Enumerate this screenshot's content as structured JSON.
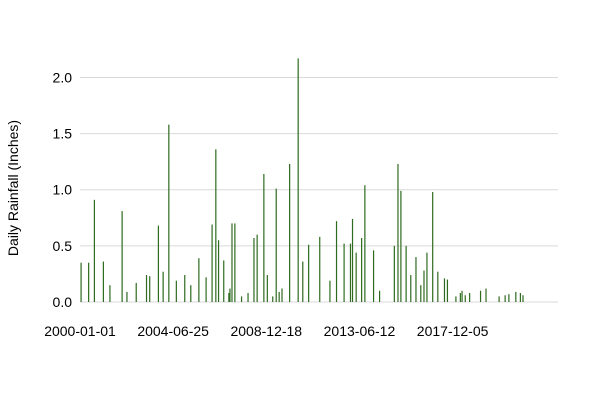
{
  "chart_data": {
    "type": "bar",
    "title": "",
    "xlabel": "",
    "ylabel": "Daily Rainfall (Inches)",
    "ylim": [
      0,
      2.2
    ],
    "xlim": [
      "2000-01-01",
      "2022-12-31"
    ],
    "y_ticks": [
      0.0,
      0.5,
      1.0,
      1.5,
      2.0
    ],
    "y_tick_labels": [
      "0.0",
      "0.5",
      "1.0",
      "1.5",
      "2.0"
    ],
    "x_tick_labels": [
      "2000-01-01",
      "2004-06-25",
      "2008-12-18",
      "2013-06-12",
      "2017-12-05"
    ],
    "grid": "horizontal",
    "legend": "none",
    "bar_color": "#2e6b1f",
    "grid_color": "#d9d9d9",
    "x": [
      "2000-01-20",
      "2000-06-01",
      "2000-09-10",
      "2001-02-15",
      "2001-06-10",
      "2002-01-10",
      "2002-04-05",
      "2002-09-15",
      "2003-03-15",
      "2003-05-10",
      "2003-10-10",
      "2004-01-01",
      "2004-04-10",
      "2004-08-20",
      "2005-01-15",
      "2005-05-01",
      "2005-09-20",
      "2006-01-25",
      "2006-05-10",
      "2006-07-15",
      "2006-09-01",
      "2006-12-01",
      "2007-03-01",
      "2007-03-20",
      "2007-04-25",
      "2007-06-15",
      "2007-10-10",
      "2008-02-01",
      "2008-05-15",
      "2008-07-10",
      "2008-11-05",
      "2009-01-05",
      "2009-04-10",
      "2009-06-10",
      "2009-08-01",
      "2009-09-20",
      "2010-02-01",
      "2010-07-01",
      "2010-09-20",
      "2011-01-01",
      "2011-07-15",
      "2012-01-10",
      "2012-05-05",
      "2012-09-15",
      "2013-01-05",
      "2013-02-10",
      "2013-04-15",
      "2013-07-20",
      "2013-09-15",
      "2014-02-15",
      "2014-06-01",
      "2015-02-15",
      "2015-04-20",
      "2015-06-10",
      "2015-09-10",
      "2015-12-01",
      "2016-03-01",
      "2016-05-25",
      "2016-07-20",
      "2016-09-10",
      "2016-12-20",
      "2017-03-20",
      "2017-07-15",
      "2017-09-05",
      "2018-02-01",
      "2018-04-20",
      "2018-05-20",
      "2018-07-15",
      "2018-09-30",
      "2019-04-10",
      "2019-07-15",
      "2020-03-01",
      "2020-06-15",
      "2020-08-20",
      "2020-12-20",
      "2021-03-10",
      "2021-04-25"
    ],
    "values": [
      0.35,
      0.35,
      0.91,
      0.36,
      0.15,
      0.81,
      0.09,
      0.17,
      0.24,
      0.23,
      0.68,
      0.27,
      1.58,
      0.19,
      0.24,
      0.15,
      0.39,
      0.22,
      0.69,
      1.36,
      0.55,
      0.37,
      0.08,
      0.12,
      0.7,
      0.7,
      0.05,
      0.08,
      0.57,
      0.6,
      1.14,
      0.24,
      0.05,
      1.01,
      0.09,
      0.12,
      1.23,
      2.17,
      0.36,
      0.51,
      0.58,
      0.19,
      0.72,
      0.52,
      0.52,
      0.74,
      0.44,
      0.57,
      1.04,
      0.46,
      0.1,
      0.5,
      1.23,
      0.99,
      0.5,
      0.24,
      0.4,
      0.15,
      0.28,
      0.44,
      0.98,
      0.27,
      0.21,
      0.2,
      0.05,
      0.08,
      0.1,
      0.06,
      0.08,
      0.1,
      0.12,
      0.05,
      0.06,
      0.07,
      0.09,
      0.08,
      0.06
    ]
  }
}
